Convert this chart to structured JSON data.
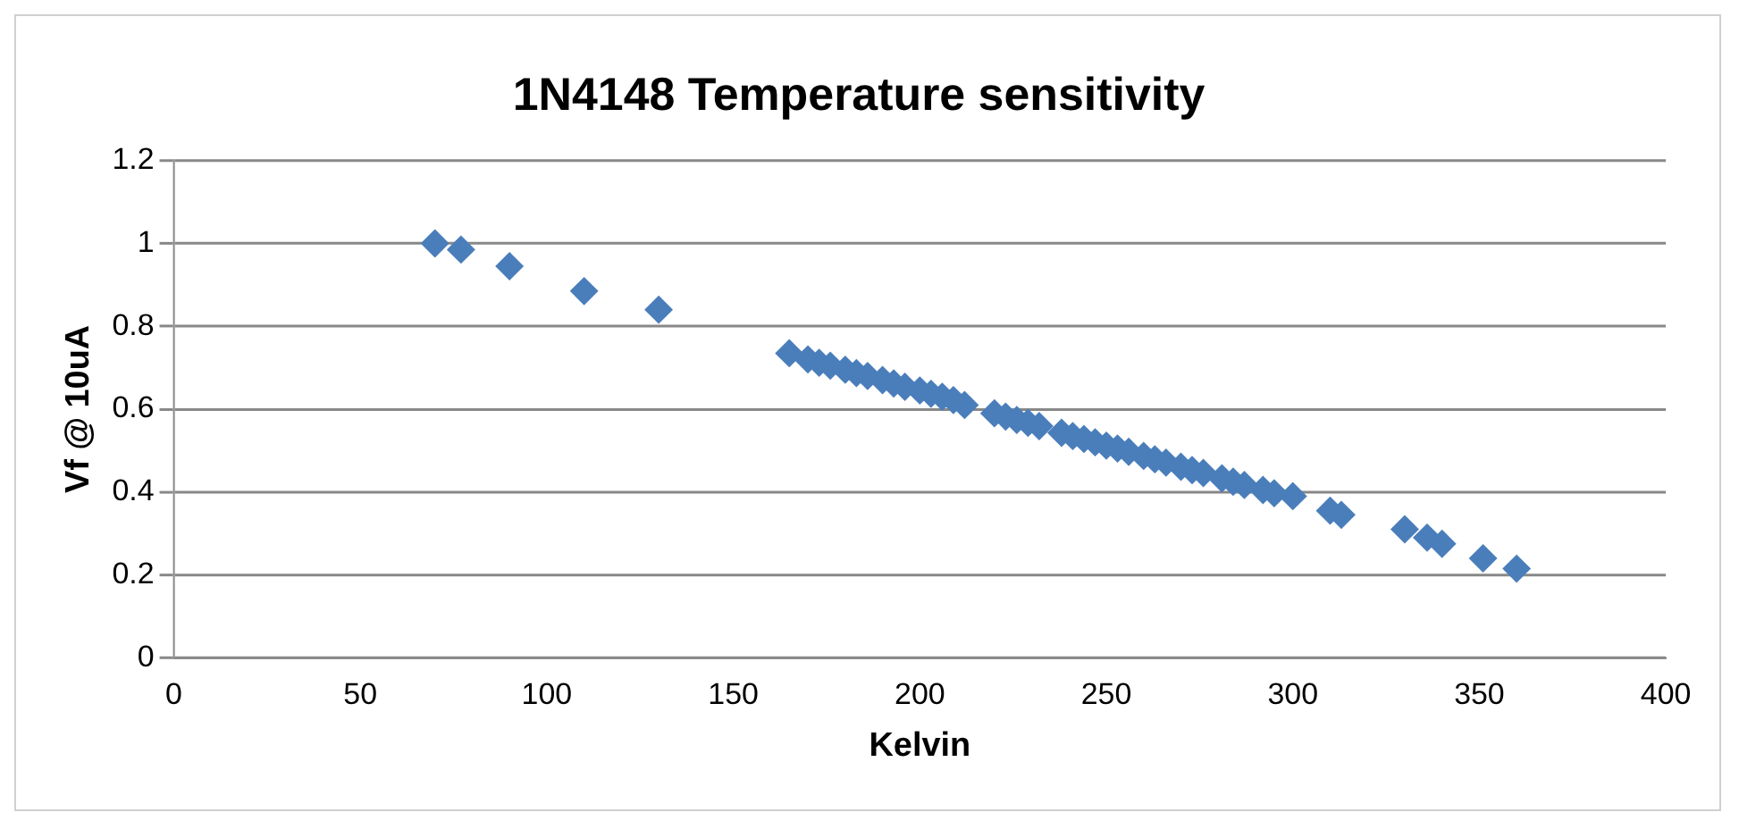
{
  "chart_data": {
    "type": "scatter",
    "title": "1N4148 Temperature sensitivity",
    "xlabel": "Kelvin",
    "ylabel": "Vf @ 10uA",
    "x": [
      70,
      77,
      90,
      110,
      130,
      165,
      170,
      173,
      176,
      180,
      183,
      186,
      190,
      193,
      196,
      200,
      203,
      206,
      209,
      212,
      220,
      223,
      226,
      229,
      232,
      238,
      241,
      244,
      247,
      250,
      253,
      256,
      260,
      263,
      266,
      270,
      273,
      276,
      281,
      284,
      287,
      292,
      295,
      300,
      310,
      313,
      330,
      336,
      340,
      351,
      360
    ],
    "series": [
      {
        "color": "#4a7ebb",
        "values": [
          1.0,
          0.985,
          0.945,
          0.885,
          0.84,
          0.735,
          0.72,
          0.712,
          0.705,
          0.695,
          0.687,
          0.68,
          0.67,
          0.662,
          0.654,
          0.645,
          0.637,
          0.63,
          0.622,
          0.61,
          0.59,
          0.582,
          0.574,
          0.567,
          0.559,
          0.543,
          0.535,
          0.528,
          0.52,
          0.512,
          0.505,
          0.497,
          0.487,
          0.479,
          0.471,
          0.461,
          0.453,
          0.446,
          0.433,
          0.425,
          0.417,
          0.405,
          0.397,
          0.39,
          0.355,
          0.345,
          0.31,
          0.29,
          0.275,
          0.24,
          0.215
        ]
      }
    ],
    "xlim": [
      0,
      400
    ],
    "xticks": [
      0,
      50,
      100,
      150,
      200,
      250,
      300,
      350,
      400
    ],
    "ylim": [
      0,
      1.2
    ],
    "yticks": [
      0,
      0.2,
      0.4,
      0.6,
      0.8,
      1,
      1.2
    ],
    "grid": "y",
    "legend": false,
    "marker": "diamond"
  }
}
